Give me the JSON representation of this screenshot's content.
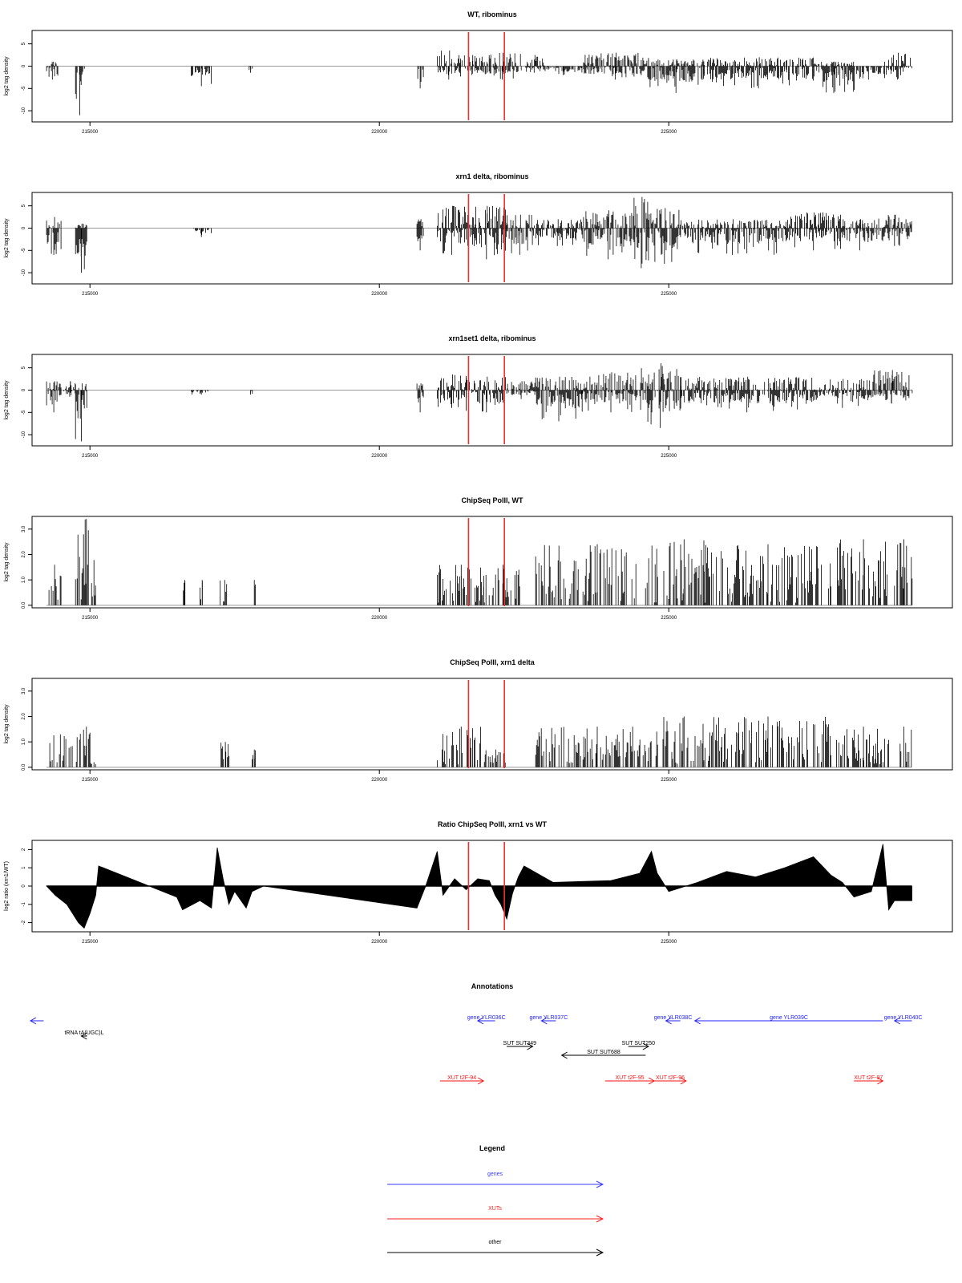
{
  "chart_data": [
    {
      "type": "bar",
      "title": "WT, ribominus",
      "ylabel": "log2 tag density",
      "xlim": [
        214000,
        229900
      ],
      "ylim": [
        -12.5,
        8
      ],
      "yticks": [
        -10,
        -5,
        0,
        5
      ],
      "ytick_labels": [
        "-10",
        "-5",
        "0",
        "5"
      ],
      "xticks": [
        215000,
        220000,
        225000
      ],
      "xtick_labels": [
        "215000",
        "220000",
        "225000"
      ],
      "marker_lines": [
        221540,
        222160
      ],
      "marker_color": "#f03030",
      "segments": [
        {
          "x": [
            214250,
            214450
          ],
          "y": [
            -3,
            1
          ]
        },
        {
          "x": [
            214750,
            214900
          ],
          "y": [
            -11,
            0
          ]
        },
        {
          "x": [
            216750,
            217100
          ],
          "y": [
            -4.5,
            0
          ]
        },
        {
          "x": [
            217750,
            217800
          ],
          "y": [
            -1.5,
            0
          ]
        },
        {
          "x": [
            220650,
            220760
          ],
          "y": [
            -5,
            0
          ]
        },
        {
          "x": [
            221000,
            221400
          ],
          "y": [
            -3,
            3.5
          ]
        },
        {
          "x": [
            221400,
            221800
          ],
          "y": [
            -2,
            2.5
          ]
        },
        {
          "x": [
            221800,
            222450
          ],
          "y": [
            -3,
            3
          ]
        },
        {
          "x": [
            222500,
            222850
          ],
          "y": [
            -1.5,
            2.5
          ]
        },
        {
          "x": [
            222850,
            223500
          ],
          "y": [
            -2,
            0
          ]
        },
        {
          "x": [
            223500,
            224650
          ],
          "y": [
            -3,
            3
          ]
        },
        {
          "x": [
            224650,
            225600
          ],
          "y": [
            -6,
            1.5
          ]
        },
        {
          "x": [
            225600,
            227500
          ],
          "y": [
            -5,
            2
          ]
        },
        {
          "x": [
            227500,
            228200
          ],
          "y": [
            -6,
            1
          ]
        },
        {
          "x": [
            228200,
            228700
          ],
          "y": [
            -3,
            0
          ]
        },
        {
          "x": [
            228700,
            229200
          ],
          "y": [
            -3,
            3
          ]
        }
      ]
    },
    {
      "type": "bar",
      "title": "xrn1 delta, ribominus",
      "ylabel": "log2 tag density",
      "xlim": [
        214000,
        229900
      ],
      "ylim": [
        -12.5,
        8
      ],
      "yticks": [
        -10,
        -5,
        0,
        5
      ],
      "ytick_labels": [
        "-10",
        "-5",
        "0",
        "5"
      ],
      "xticks": [
        215000,
        220000,
        225000
      ],
      "xtick_labels": [
        "215000",
        "220000",
        "225000"
      ],
      "marker_lines": [
        221540,
        222160
      ],
      "marker_color": "#f03030",
      "segments": [
        {
          "x": [
            214250,
            214500
          ],
          "y": [
            -6,
            2.5
          ]
        },
        {
          "x": [
            214750,
            214950
          ],
          "y": [
            -10,
            1
          ]
        },
        {
          "x": [
            216750,
            217100
          ],
          "y": [
            -2,
            0
          ]
        },
        {
          "x": [
            220650,
            220760
          ],
          "y": [
            -5,
            2
          ]
        },
        {
          "x": [
            221000,
            221500
          ],
          "y": [
            -6,
            5
          ]
        },
        {
          "x": [
            221500,
            222200
          ],
          "y": [
            -7,
            5
          ]
        },
        {
          "x": [
            222200,
            222650
          ],
          "y": [
            -6,
            3
          ]
        },
        {
          "x": [
            222650,
            223500
          ],
          "y": [
            -4,
            2
          ]
        },
        {
          "x": [
            223500,
            224400
          ],
          "y": [
            -7,
            4
          ]
        },
        {
          "x": [
            224400,
            224650
          ],
          "y": [
            -9,
            7
          ]
        },
        {
          "x": [
            224650,
            225200
          ],
          "y": [
            -8,
            4.5
          ]
        },
        {
          "x": [
            225200,
            227000
          ],
          "y": [
            -6,
            2
          ]
        },
        {
          "x": [
            227000,
            228000
          ],
          "y": [
            -5,
            3.5
          ]
        },
        {
          "x": [
            228000,
            228600
          ],
          "y": [
            -5,
            2
          ]
        },
        {
          "x": [
            228600,
            229200
          ],
          "y": [
            -4,
            3
          ]
        }
      ]
    },
    {
      "type": "bar",
      "title": "xrn1set1 delta, ribominus",
      "ylabel": "log2 tag density",
      "xlim": [
        214000,
        229900
      ],
      "ylim": [
        -12.5,
        8
      ],
      "yticks": [
        -10,
        -5,
        0,
        5
      ],
      "ytick_labels": [
        "-10",
        "-5",
        "0",
        "5"
      ],
      "xticks": [
        215000,
        220000,
        225000
      ],
      "xtick_labels": [
        "215000",
        "220000",
        "225000"
      ],
      "marker_lines": [
        221540,
        222160
      ],
      "marker_color": "#f03030",
      "segments": [
        {
          "x": [
            214250,
            214500
          ],
          "y": [
            -5,
            2
          ]
        },
        {
          "x": [
            214550,
            214750
          ],
          "y": [
            -1.5,
            2
          ]
        },
        {
          "x": [
            214750,
            214950
          ],
          "y": [
            -11.5,
            1.5
          ]
        },
        {
          "x": [
            216750,
            217100
          ],
          "y": [
            -1,
            0
          ]
        },
        {
          "x": [
            217750,
            217800
          ],
          "y": [
            -1,
            0
          ]
        },
        {
          "x": [
            220650,
            220760
          ],
          "y": [
            -5,
            1.5
          ]
        },
        {
          "x": [
            221000,
            221500
          ],
          "y": [
            -4,
            3.5
          ]
        },
        {
          "x": [
            221500,
            222200
          ],
          "y": [
            -5,
            3
          ]
        },
        {
          "x": [
            222200,
            222700
          ],
          "y": [
            -2,
            2
          ]
        },
        {
          "x": [
            222700,
            223500
          ],
          "y": [
            -7,
            3
          ]
        },
        {
          "x": [
            223500,
            224500
          ],
          "y": [
            -5,
            4
          ]
        },
        {
          "x": [
            224500,
            225200
          ],
          "y": [
            -8.5,
            6
          ]
        },
        {
          "x": [
            225200,
            227500
          ],
          "y": [
            -5,
            3
          ]
        },
        {
          "x": [
            227500,
            228500
          ],
          "y": [
            -4,
            2.5
          ]
        },
        {
          "x": [
            228500,
            229200
          ],
          "y": [
            -3,
            4.5
          ]
        }
      ]
    },
    {
      "type": "bar",
      "title": "ChipSeq PolII, WT",
      "ylabel": "log2 tag density",
      "xlim": [
        214000,
        229900
      ],
      "ylim": [
        -0.1,
        3.5
      ],
      "yticks": [
        0,
        1,
        2,
        3
      ],
      "ytick_labels": [
        "0.0",
        "1.0",
        "2.0",
        "3.0"
      ],
      "xticks": [
        215000,
        220000,
        225000
      ],
      "xtick_labels": [
        "215000",
        "220000",
        "225000"
      ],
      "marker_lines": [
        221540,
        222160
      ],
      "marker_color": "#f03030",
      "segments": [
        {
          "x": [
            214250,
            214500
          ],
          "y": [
            0,
            1.6
          ]
        },
        {
          "x": [
            214750,
            215100
          ],
          "y": [
            0,
            3.4
          ]
        },
        {
          "x": [
            216600,
            216650
          ],
          "y": [
            0,
            1
          ]
        },
        {
          "x": [
            216900,
            216950
          ],
          "y": [
            0,
            1
          ]
        },
        {
          "x": [
            217250,
            217380
          ],
          "y": [
            0,
            1
          ]
        },
        {
          "x": [
            217800,
            217850
          ],
          "y": [
            0,
            1
          ]
        },
        {
          "x": [
            221000,
            221800
          ],
          "y": [
            0,
            1.6
          ]
        },
        {
          "x": [
            221800,
            222450
          ],
          "y": [
            0,
            1.6
          ]
        },
        {
          "x": [
            222700,
            224800
          ],
          "y": [
            0,
            2.4
          ]
        },
        {
          "x": [
            224900,
            225600
          ],
          "y": [
            0,
            2.6
          ]
        },
        {
          "x": [
            225600,
            227800
          ],
          "y": [
            0,
            2.4
          ]
        },
        {
          "x": [
            227900,
            228800
          ],
          "y": [
            0,
            2.6
          ]
        },
        {
          "x": [
            228900,
            229200
          ],
          "y": [
            0,
            2.6
          ]
        }
      ]
    },
    {
      "type": "bar",
      "title": "ChipSeq PolII, xrn1 delta",
      "ylabel": "log2 tag density",
      "xlim": [
        214000,
        229900
      ],
      "ylim": [
        -0.1,
        3.5
      ],
      "yticks": [
        0,
        1,
        2,
        3
      ],
      "ytick_labels": [
        "0.0",
        "1.0",
        "2.0",
        "3.0"
      ],
      "xticks": [
        215000,
        220000,
        225000
      ],
      "xtick_labels": [
        "215000",
        "220000",
        "225000"
      ],
      "marker_lines": [
        221540,
        222160
      ],
      "marker_color": "#f03030",
      "segments": [
        {
          "x": [
            214250,
            214700
          ],
          "y": [
            0,
            1.3
          ]
        },
        {
          "x": [
            214750,
            215100
          ],
          "y": [
            0,
            1.6
          ]
        },
        {
          "x": [
            217250,
            217400
          ],
          "y": [
            0,
            1
          ]
        },
        {
          "x": [
            217800,
            217850
          ],
          "y": [
            0,
            0.7
          ]
        },
        {
          "x": [
            221000,
            221800
          ],
          "y": [
            0,
            1.6
          ]
        },
        {
          "x": [
            221800,
            222200
          ],
          "y": [
            0,
            0.7
          ]
        },
        {
          "x": [
            222700,
            224800
          ],
          "y": [
            0,
            1.6
          ]
        },
        {
          "x": [
            224900,
            225600
          ],
          "y": [
            0,
            2
          ]
        },
        {
          "x": [
            225600,
            227800
          ],
          "y": [
            0,
            2
          ]
        },
        {
          "x": [
            227900,
            228800
          ],
          "y": [
            0,
            1.6
          ]
        },
        {
          "x": [
            228900,
            229200
          ],
          "y": [
            0,
            1.6
          ]
        }
      ]
    },
    {
      "type": "area",
      "title": "Ratio ChipSeq PolII, xrn1 vs WT",
      "ylabel": "log2 ratio (xrn1/WT)",
      "xlim": [
        214000,
        229900
      ],
      "ylim": [
        -2.5,
        2.5
      ],
      "yticks": [
        -2,
        -1,
        0,
        1,
        2
      ],
      "ytick_labels": [
        "-2",
        "-1",
        "0",
        "1",
        "2"
      ],
      "xticks": [
        215000,
        220000,
        225000
      ],
      "xtick_labels": [
        "215000",
        "220000",
        "225000"
      ],
      "marker_lines": [
        221540,
        222160
      ],
      "marker_color": "#f03030",
      "x": [
        214250,
        214400,
        214600,
        214800,
        214900,
        215000,
        215100,
        215150,
        216500,
        216600,
        216900,
        217100,
        217200,
        217300,
        217400,
        217500,
        217700,
        217800,
        218000,
        220650,
        220800,
        221000,
        221100,
        221300,
        221500,
        221700,
        221900,
        222000,
        222100,
        222200,
        222300,
        222400,
        222500,
        223000,
        224000,
        224500,
        224700,
        224800,
        225000,
        225500,
        226000,
        226500,
        227000,
        227500,
        227800,
        228000,
        228200,
        228500,
        228700,
        228800,
        228900,
        229200
      ],
      "y": [
        0,
        -0.5,
        -1,
        -2,
        -2.3,
        -1.5,
        -0.5,
        1.1,
        -0.6,
        -1.3,
        -0.8,
        -1.2,
        2.1,
        0.4,
        -1,
        -0.3,
        -1.2,
        -0.3,
        0,
        -1.2,
        0,
        1.9,
        -0.5,
        0.4,
        -0.2,
        0.4,
        0.3,
        -0.5,
        -1,
        -1.8,
        -0.4,
        0.5,
        1.1,
        0.2,
        0.3,
        0.7,
        1.9,
        0.7,
        -0.3,
        0.2,
        0.8,
        0.5,
        1,
        1.6,
        0.6,
        0.2,
        -0.6,
        -0.3,
        2.3,
        -1.3,
        -0.8,
        -0.8
      ]
    }
  ],
  "annotations": {
    "title": "Annotations",
    "items": [
      {
        "label": "gene YLR036C",
        "kind": "gene",
        "start": 222000,
        "end": 221700,
        "row": 0
      },
      {
        "label": "gene YLR037C",
        "kind": "gene",
        "start": 223050,
        "end": 222800,
        "row": 0
      },
      {
        "label": "gene YLR038C",
        "kind": "gene",
        "start": 225200,
        "end": 224950,
        "row": 0
      },
      {
        "label": "gene YLR039C",
        "kind": "gene",
        "start": 228700,
        "end": 225450,
        "row": 0
      },
      {
        "label": "gene YLR040C",
        "kind": "gene",
        "start": 229200,
        "end": 228900,
        "row": 0
      },
      {
        "label": "tRNA tA(UGC)L",
        "kind": "other",
        "start": 214950,
        "end": 214850,
        "row": 1
      },
      {
        "label": "SUT SUT349",
        "kind": "other",
        "start": 222200,
        "end": 222650,
        "row": 2
      },
      {
        "label": "SUT SUT250",
        "kind": "other",
        "start": 224300,
        "end": 224650,
        "row": 2
      },
      {
        "label": "SUT SUT688",
        "kind": "other",
        "start": 224600,
        "end": 223150,
        "row": 3
      },
      {
        "label": "XUT t2F-94",
        "kind": "xut",
        "start": 221050,
        "end": 221800,
        "row": 4
      },
      {
        "label": "XUT t2F-95",
        "kind": "xut",
        "start": 223900,
        "end": 224750,
        "row": 4
      },
      {
        "label": "XUT t2F-96",
        "kind": "xut",
        "start": 224750,
        "end": 225300,
        "row": 4
      },
      {
        "label": "XUT t2F-97",
        "kind": "xut",
        "start": 228200,
        "end": 228700,
        "row": 4
      }
    ],
    "edge_gene_label": "",
    "edge_gene": {
      "start": 214200,
      "end": 213500
    }
  },
  "legend": {
    "title": "Legend",
    "entries": [
      {
        "label": "genes",
        "color": "#3a3aff"
      },
      {
        "label": "XUTs",
        "color": "#ff2020"
      },
      {
        "label": "other",
        "color": "#000000"
      }
    ]
  },
  "colors": {
    "gene": "#2020ff",
    "xut": "#ff1010",
    "other": "#000000"
  }
}
